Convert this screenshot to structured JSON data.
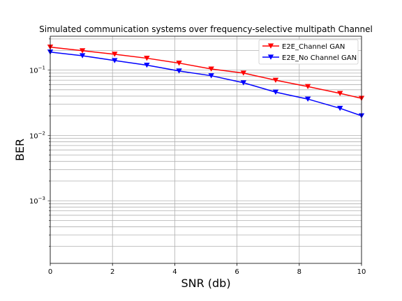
{
  "chart_data": {
    "type": "line",
    "title": "Simulated communication systems over frequency-selective multipath Channel",
    "xlabel": "SNR (db)",
    "ylabel": "BER",
    "xlim": [
      0,
      10
    ],
    "ylim": [
      0.00011,
      0.33
    ],
    "yscale": "log",
    "grid": true,
    "legend_position": "top-right",
    "x_ticks": [
      0,
      2,
      4,
      6,
      8,
      10
    ],
    "y_ticks": [
      {
        "value": 0.001,
        "base": "10",
        "exp": "−3"
      },
      {
        "value": 0.01,
        "base": "10",
        "exp": "−2"
      },
      {
        "value": 0.1,
        "base": "10",
        "exp": "−1"
      }
    ],
    "series": [
      {
        "name": "E2E_Channel GAN",
        "color": "#ff0000",
        "marker": "triangle-down",
        "x": [
          0,
          1.034,
          2.069,
          3.103,
          4.138,
          5.172,
          6.207,
          7.241,
          8.276,
          9.31,
          10
        ],
        "y": [
          0.225,
          0.198,
          0.175,
          0.152,
          0.128,
          0.104,
          0.09,
          0.07,
          0.056,
          0.044,
          0.037
        ]
      },
      {
        "name": "E2E_No Channel GAN",
        "color": "#0000ff",
        "marker": "triangle-down",
        "x": [
          0,
          1.034,
          2.069,
          3.103,
          4.138,
          5.172,
          6.207,
          7.241,
          8.276,
          9.31,
          10
        ],
        "y": [
          0.189,
          0.166,
          0.14,
          0.119,
          0.097,
          0.082,
          0.064,
          0.046,
          0.036,
          0.026,
          0.02
        ]
      }
    ]
  }
}
